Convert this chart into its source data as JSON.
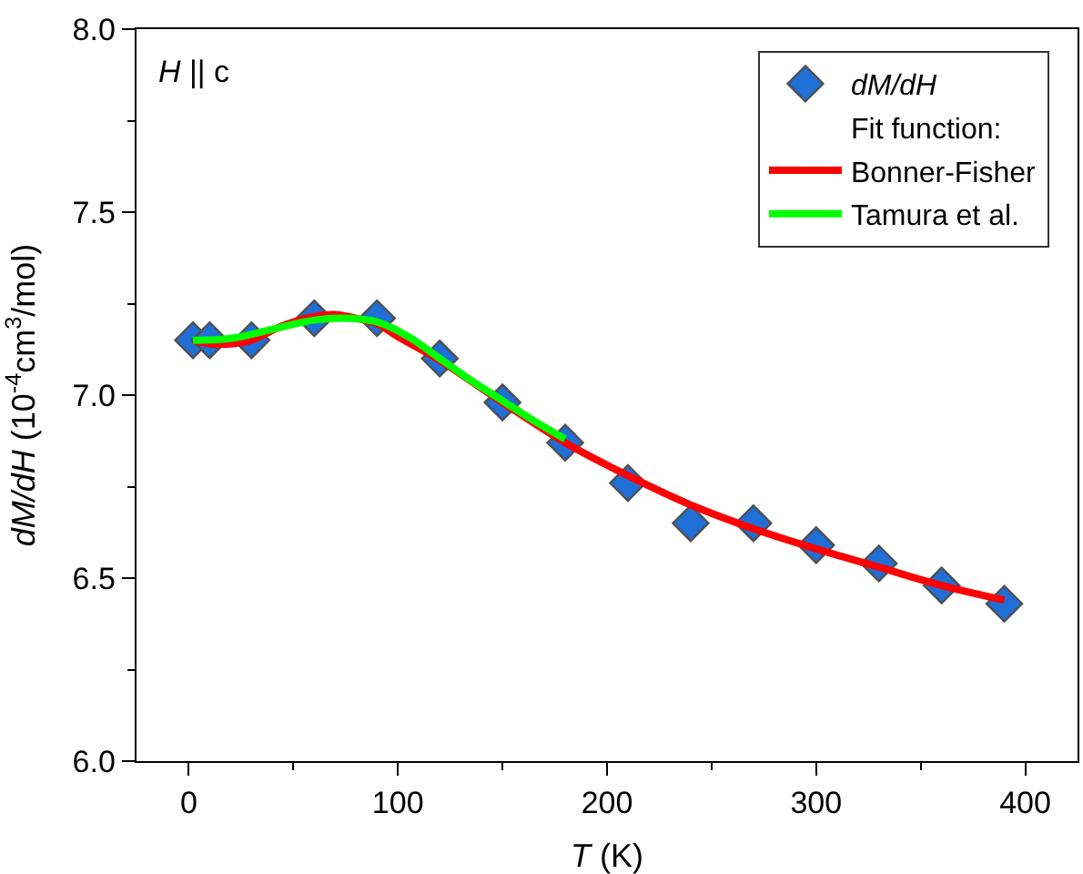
{
  "chart_data": {
    "type": "scatter",
    "xlabel": "T (K)",
    "ylabel": "dM/dH (10$^{-4}$cm$^{3}$/mol)",
    "annotations": [
      "H || c",
      "Fit function:"
    ],
    "xlim": [
      -25,
      425
    ],
    "xticks": [
      0,
      100,
      200,
      300,
      400
    ],
    "ylim": [
      6.0,
      8.0
    ],
    "yticks": [
      {
        "value": 6,
        "label": "6.0"
      },
      6.5,
      {
        "value": 7,
        "label": "7.0"
      },
      7.5,
      {
        "value": 8,
        "label": "8.0"
      }
    ],
    "legend": "top right",
    "series": [
      {
        "name": "dM/dH",
        "marker": "diamond",
        "color": "#1f6fd6",
        "x": [
          2,
          10,
          30,
          60,
          90,
          120,
          150,
          180,
          210,
          240,
          270,
          300,
          330,
          360,
          390
        ],
        "values": [
          7.15,
          7.15,
          7.15,
          7.21,
          7.21,
          7.1,
          6.98,
          6.87,
          6.76,
          6.65,
          6.65,
          6.59,
          6.54,
          6.48,
          6.43
        ]
      },
      {
        "name": "Bonner-Fisher",
        "type": "line",
        "color": "#ff0000",
        "x": [
          2,
          10,
          20,
          30,
          45,
          60,
          70,
          80,
          90,
          100,
          120,
          150,
          180,
          210,
          240,
          270,
          300,
          330,
          360,
          390
        ],
        "values": [
          7.15,
          7.14,
          7.14,
          7.15,
          7.19,
          7.215,
          7.22,
          7.21,
          7.195,
          7.16,
          7.095,
          6.98,
          6.87,
          6.78,
          6.7,
          6.635,
          6.58,
          6.53,
          6.48,
          6.44
        ]
      },
      {
        "name": "Tamura et al.",
        "type": "line",
        "color": "#00ff00",
        "x": [
          2,
          20,
          40,
          60,
          75,
          90,
          105,
          120,
          135,
          150,
          165,
          180
        ],
        "values": [
          7.15,
          7.155,
          7.18,
          7.205,
          7.21,
          7.2,
          7.16,
          7.1,
          7.04,
          6.985,
          6.93,
          6.88
        ]
      }
    ]
  }
}
